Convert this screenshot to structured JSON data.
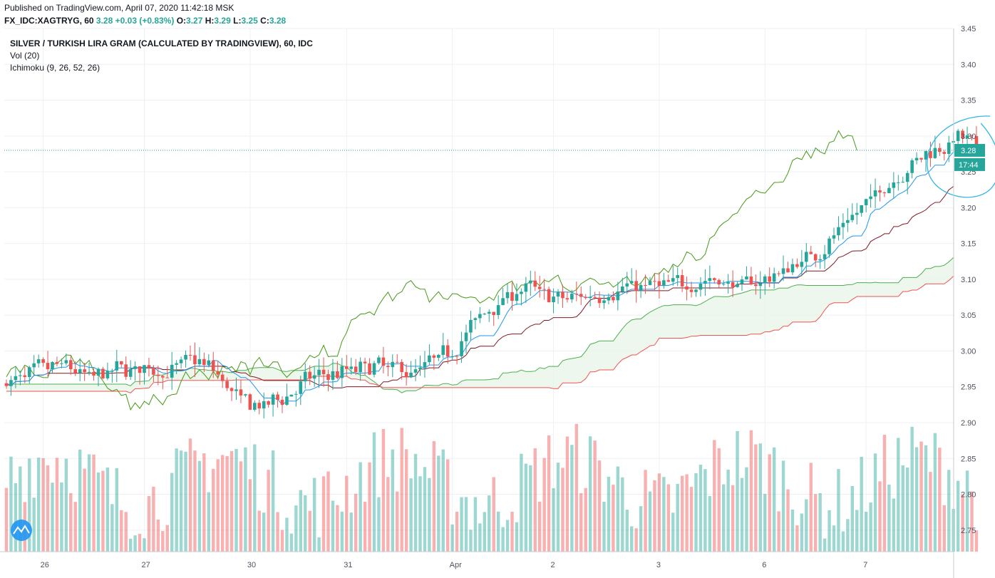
{
  "header": {
    "published": "Published on TradingView.com, April 07, 2020 11:42:18 MSK",
    "symbol": "FX_IDC:XAGTRYG, 60",
    "last": "3.28",
    "change": "+0.03 (+0.83%)",
    "o_label": "O:",
    "o": "3.27",
    "h_label": "H:",
    "h": "3.29",
    "l_label": "L:",
    "l": "3.25",
    "c_label": "C:",
    "c": "3.28"
  },
  "legend": {
    "title": "SILVER / TURKISH LIRA GRAM (CALCULATED BY TRADINGVIEW), 60, IDC",
    "vol": "Vol (20)",
    "ichimoku": "Ichimoku (9, 26, 52, 26)"
  },
  "price_tag": "3.28",
  "time_tag": "17:44",
  "colors": {
    "up": "#26a69a",
    "down": "#ef5350",
    "conversion": "#2196f3",
    "base": "#801922",
    "lagging": "#459915",
    "lead_a": "#4caf50",
    "lead_b": "#ef5350",
    "cloud": "#e8f5e9",
    "annotation": "#33b5e5"
  },
  "chart_data": {
    "type": "candlestick",
    "y_axis": {
      "min": 2.72,
      "max": 3.45,
      "ticks": [
        "3.45",
        "3.40",
        "3.35",
        "3.30",
        "3.25",
        "3.20",
        "3.15",
        "3.10",
        "3.05",
        "3.00",
        "2.95",
        "2.90",
        "2.85",
        "2.80",
        "2.75"
      ]
    },
    "x_ticks": [
      "26",
      "27",
      "30",
      "31",
      "Apr",
      "2",
      "3",
      "6",
      "7"
    ],
    "last_price": 3.28,
    "price_path": [
      [
        0,
        2.955
      ],
      [
        6,
        2.97
      ],
      [
        12,
        2.98
      ],
      [
        18,
        2.96
      ],
      [
        24,
        2.975
      ],
      [
        30,
        2.975
      ],
      [
        35,
        2.97
      ],
      [
        40,
        2.99
      ],
      [
        45,
        2.97
      ],
      [
        50,
        2.93
      ],
      [
        55,
        2.92
      ],
      [
        58,
        2.93
      ],
      [
        65,
        2.96
      ],
      [
        72,
        2.97
      ],
      [
        80,
        2.98
      ],
      [
        88,
        2.97
      ],
      [
        96,
        3.0
      ],
      [
        104,
        3.06
      ],
      [
        112,
        3.09
      ],
      [
        120,
        3.07
      ],
      [
        128,
        3.08
      ],
      [
        136,
        3.09
      ],
      [
        144,
        3.09
      ],
      [
        152,
        3.1
      ],
      [
        160,
        3.09
      ],
      [
        168,
        3.11
      ],
      [
        176,
        3.14
      ],
      [
        184,
        3.19
      ],
      [
        192,
        3.24
      ],
      [
        200,
        3.28
      ],
      [
        207,
        3.3
      ],
      [
        212,
        3.28
      ]
    ],
    "candle_count": 212,
    "volume_range": [
      0,
      40
    ],
    "series": [
      {
        "name": "Vol (20)"
      },
      {
        "name": "Ichimoku (9, 26, 52, 26)"
      }
    ]
  }
}
